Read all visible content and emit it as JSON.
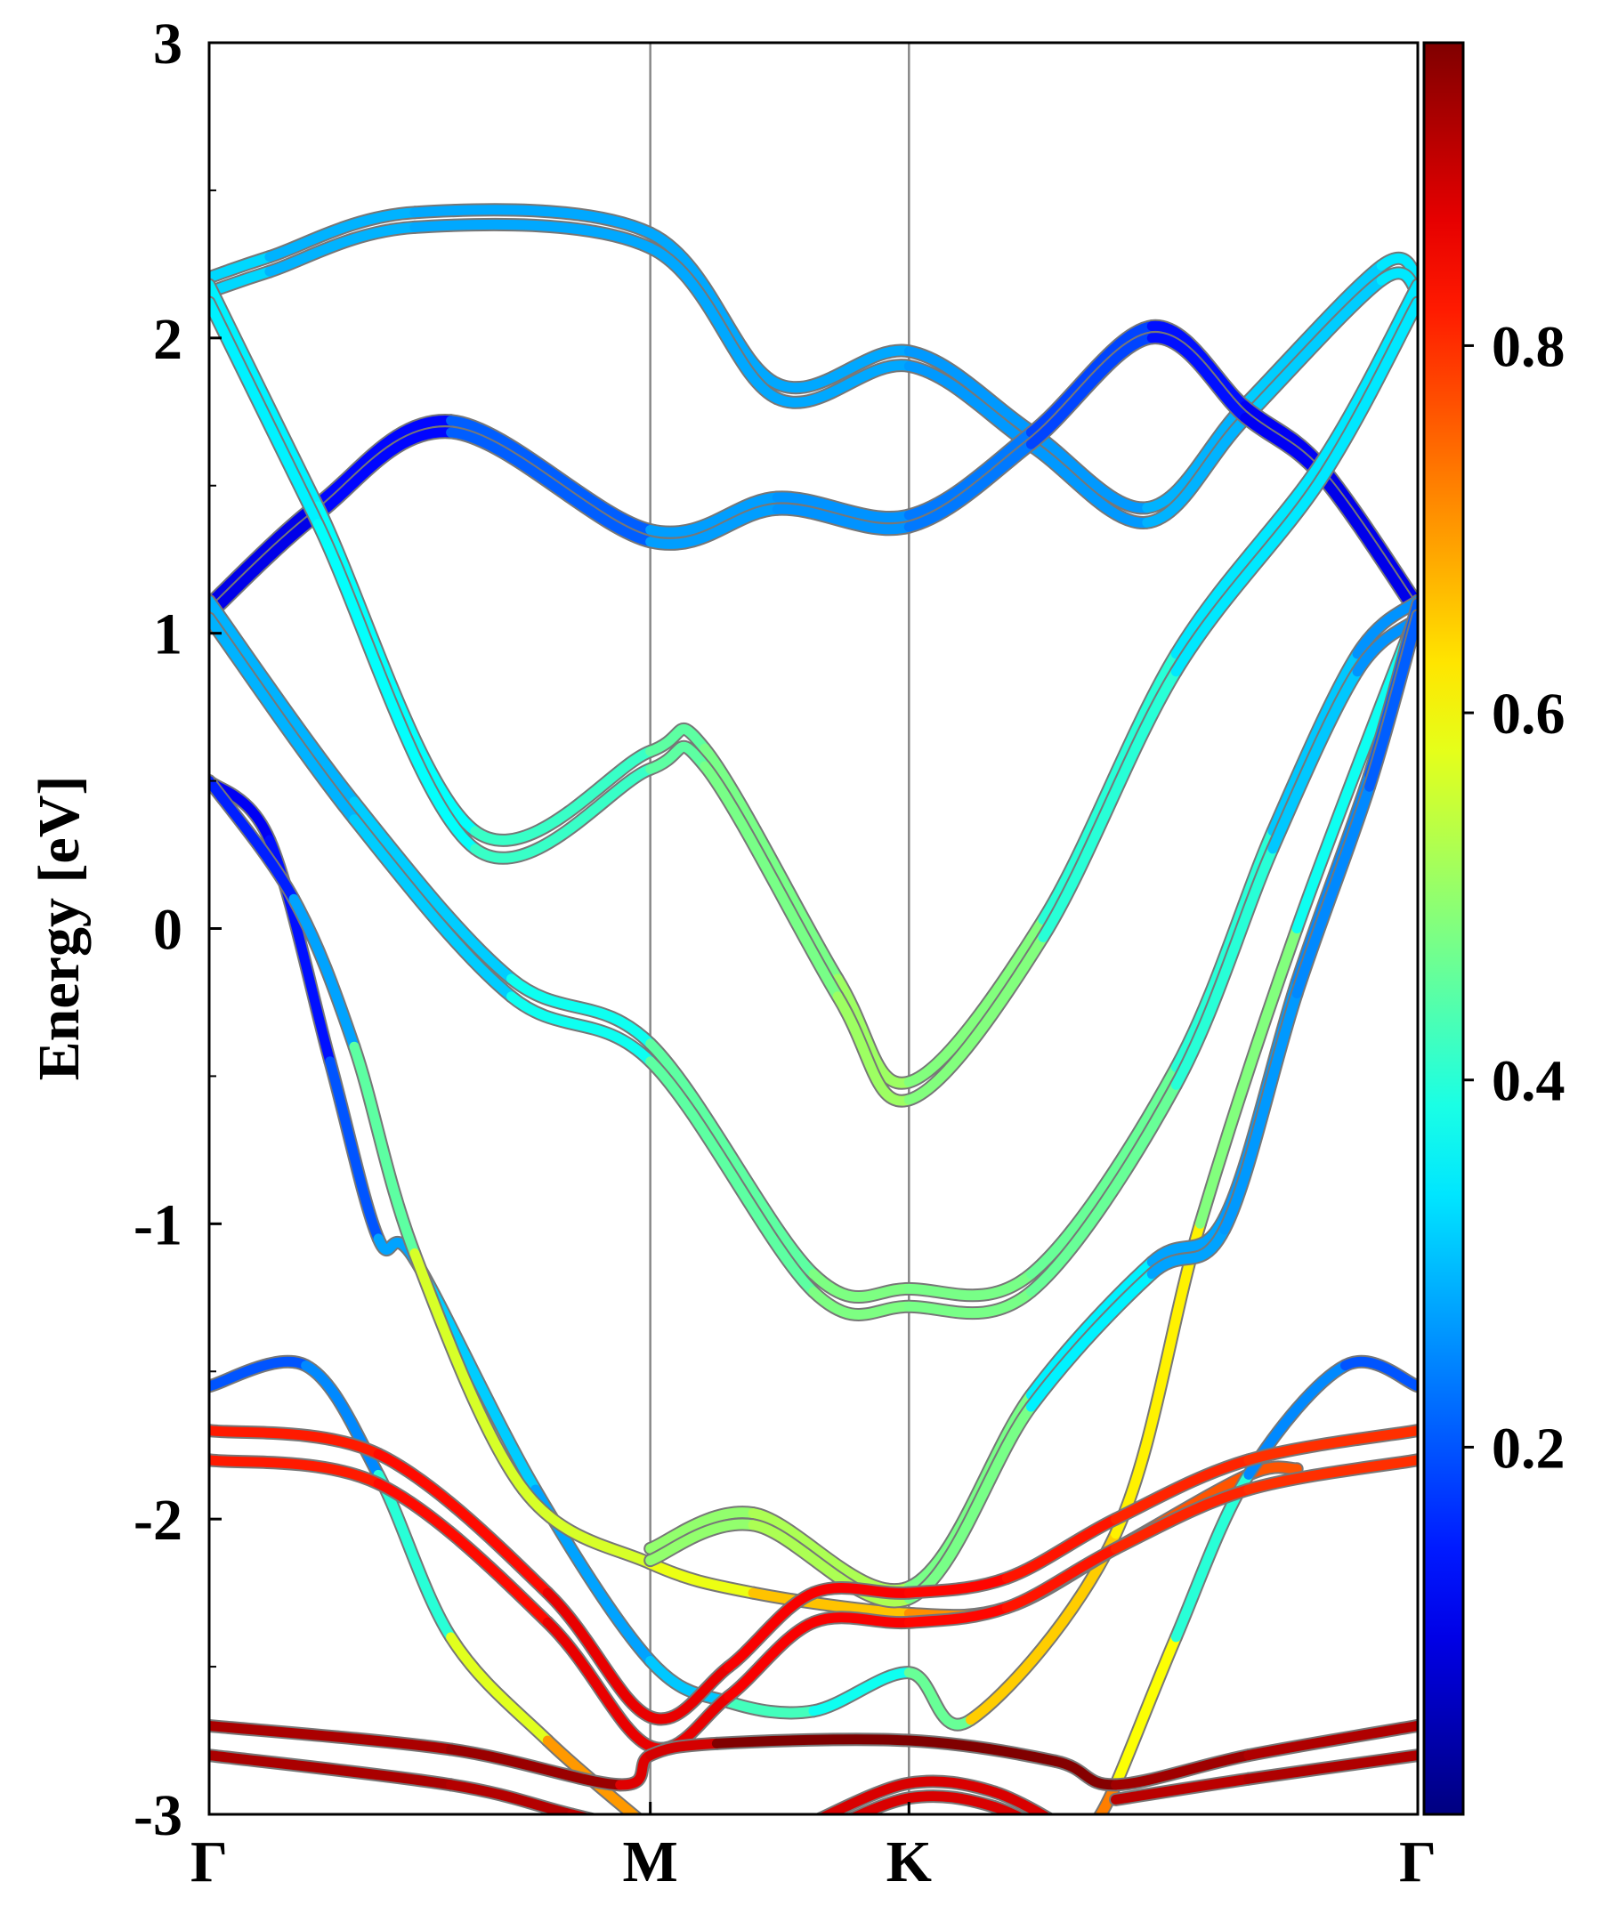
{
  "chart_data": {
    "type": "line",
    "title": "",
    "xlabel": "",
    "ylabel": "Energy [eV]",
    "ylim": [
      -3,
      3
    ],
    "xlim": [
      0,
      1
    ],
    "yticks": [
      "-3",
      "-2",
      "-1",
      "0",
      "1",
      "2",
      "3"
    ],
    "yticks_values": [
      -3,
      -2,
      -1,
      0,
      1,
      2,
      3
    ],
    "xticks": [
      {
        "label": "Γ",
        "x": 0
      },
      {
        "label": "M",
        "x": 0.365
      },
      {
        "label": "K",
        "x": 0.579
      },
      {
        "label": "Γ",
        "x": 1
      }
    ],
    "colorbar": {
      "colormap": "jet",
      "range": [
        0,
        0.965
      ],
      "ticks": [
        "0.2",
        "0.4",
        "0.6",
        "0.8"
      ],
      "tick_values": [
        0.2,
        0.4,
        0.6,
        0.8
      ]
    },
    "band_point_format": "[k-path position, energy eV, projected weight]",
    "bands": [
      {
        "name": "band-1",
        "split": 0.05,
        "points": [
          [
            0,
            2.18,
            0.35
          ],
          [
            0.05,
            2.25,
            0.3
          ],
          [
            0.17,
            2.4,
            0.28
          ],
          [
            0.365,
            2.33,
            0.28
          ],
          [
            0.47,
            1.82,
            0.28
          ],
          [
            0.579,
            1.93,
            0.28
          ],
          [
            0.68,
            1.66,
            0.25
          ],
          [
            0.776,
            1.4,
            0.28
          ],
          [
            0.857,
            1.75,
            0.3
          ],
          [
            0.97,
            2.22,
            0.33
          ],
          [
            1,
            2.18,
            0.35
          ]
        ]
      },
      {
        "name": "band-2",
        "split": 0.04,
        "points": [
          [
            0,
            1.08,
            0.1
          ],
          [
            0.09,
            1.42,
            0.1
          ],
          [
            0.2,
            1.7,
            0.15
          ],
          [
            0.365,
            1.33,
            0.27
          ],
          [
            0.47,
            1.44,
            0.27
          ],
          [
            0.579,
            1.38,
            0.25
          ],
          [
            0.68,
            1.66,
            0.22
          ],
          [
            0.78,
            2.02,
            0.15
          ],
          [
            0.857,
            1.75,
            0.12
          ],
          [
            0.92,
            1.55,
            0.1
          ],
          [
            1,
            1.08,
            0.1
          ]
        ]
      },
      {
        "name": "band-3",
        "split": 0.06,
        "points": [
          [
            0,
            2.15,
            0.35
          ],
          [
            0.09,
            1.4,
            0.35
          ],
          [
            0.22,
            0.3,
            0.38
          ],
          [
            0.365,
            0.57,
            0.45
          ],
          [
            0.41,
            0.58,
            0.45
          ],
          [
            0.52,
            -0.2,
            0.5
          ],
          [
            0.579,
            -0.55,
            0.52
          ],
          [
            0.69,
            0.0,
            0.45
          ],
          [
            0.8,
            0.9,
            0.35
          ],
          [
            0.92,
            1.55,
            0.33
          ],
          [
            1,
            2.15,
            0.35
          ]
        ]
      },
      {
        "name": "band-4",
        "split": 0.06,
        "points": [
          [
            0,
            1.08,
            0.28
          ],
          [
            0.12,
            0.4,
            0.3
          ],
          [
            0.25,
            -0.2,
            0.33
          ],
          [
            0.365,
            -0.42,
            0.42
          ],
          [
            0.5,
            -1.2,
            0.48
          ],
          [
            0.579,
            -1.25,
            0.48
          ],
          [
            0.68,
            -1.2,
            0.47
          ],
          [
            0.8,
            -0.5,
            0.45
          ],
          [
            0.88,
            0.3,
            0.35
          ],
          [
            0.95,
            0.9,
            0.27
          ],
          [
            1,
            1.08,
            0.25
          ]
        ]
      },
      {
        "name": "band-5",
        "split": 0,
        "points": [
          [
            0,
            0.5,
            0.1
          ],
          [
            0.05,
            0.3,
            0.12
          ],
          [
            0.1,
            -0.45,
            0.15
          ],
          [
            0.14,
            -1.05,
            0.25
          ],
          [
            0.17,
            -1.12,
            0.3
          ],
          [
            0.27,
            -1.9,
            0.33
          ],
          [
            0.365,
            -2.48,
            0.22
          ],
          [
            0.43,
            -2.62,
            0.4
          ],
          [
            0.5,
            -2.65,
            0.45
          ],
          [
            0.579,
            -2.52,
            0.3
          ],
          [
            0.63,
            -2.68,
            0.62
          ],
          [
            0.75,
            -2.05,
            0.68
          ],
          [
            0.82,
            -1.0,
            0.55
          ],
          [
            0.9,
            0.0,
            0.42
          ],
          [
            1,
            1.08,
            0.33
          ]
        ]
      },
      {
        "name": "band-6",
        "split": 0,
        "points": [
          [
            0,
            0.5,
            0.1
          ],
          [
            0.07,
            0.1,
            0.2
          ],
          [
            0.12,
            -0.4,
            0.35
          ],
          [
            0.17,
            -1.1,
            0.55
          ],
          [
            0.26,
            -1.9,
            0.58
          ],
          [
            0.365,
            -2.15,
            0.55
          ],
          [
            0.45,
            -2.25,
            0.62
          ],
          [
            0.579,
            -2.32,
            0.7
          ],
          [
            0.66,
            -2.3,
            0.72
          ],
          [
            0.75,
            -2.1,
            0.75
          ],
          [
            0.86,
            -1.85,
            0.78
          ],
          [
            0.9,
            -1.83,
            0.75
          ]
        ]
      },
      {
        "name": "band-7",
        "split": 0.04,
        "points": [
          [
            0.365,
            -2.12,
            0.5
          ],
          [
            0.45,
            -2.0,
            0.5
          ],
          [
            0.579,
            -2.25,
            0.55
          ],
          [
            0.68,
            -1.6,
            0.4
          ],
          [
            0.78,
            -1.15,
            0.3
          ],
          [
            0.84,
            -1.0,
            0.25
          ],
          [
            0.9,
            -0.2,
            0.28
          ],
          [
            0.96,
            0.5,
            0.22
          ],
          [
            1,
            1.08,
            0.2
          ]
        ]
      },
      {
        "name": "band-8",
        "split": 0,
        "points": [
          [
            0,
            -1.55,
            0.2
          ],
          [
            0.08,
            -1.48,
            0.2
          ],
          [
            0.14,
            -1.85,
            0.3
          ],
          [
            0.2,
            -2.4,
            0.5
          ],
          [
            0.28,
            -2.75,
            0.65
          ],
          [
            0.365,
            -3.05,
            0.75
          ]
        ]
      },
      {
        "name": "band-9",
        "split": 0,
        "points": [
          [
            0.73,
            -3.05,
            0.75
          ],
          [
            0.75,
            -2.9,
            0.7
          ],
          [
            0.8,
            -2.4,
            0.5
          ],
          [
            0.86,
            -1.85,
            0.3
          ],
          [
            0.94,
            -1.48,
            0.2
          ],
          [
            1,
            -1.55,
            0.2
          ]
        ]
      },
      {
        "name": "band-10",
        "split": 0.1,
        "points": [
          [
            0,
            -1.75,
            0.82
          ],
          [
            0.14,
            -1.83,
            0.82
          ],
          [
            0.28,
            -2.3,
            0.85
          ],
          [
            0.365,
            -2.72,
            0.88
          ],
          [
            0.43,
            -2.55,
            0.85
          ],
          [
            0.5,
            -2.3,
            0.85
          ],
          [
            0.579,
            -2.3,
            0.85
          ],
          [
            0.66,
            -2.25,
            0.83
          ],
          [
            0.75,
            -2.05,
            0.82
          ],
          [
            0.86,
            -1.85,
            0.8
          ],
          [
            1,
            -1.75,
            0.8
          ]
        ]
      },
      {
        "name": "band-11",
        "split": 0,
        "points": [
          [
            0,
            -2.7,
            0.92
          ],
          [
            0.2,
            -2.78,
            0.93
          ],
          [
            0.34,
            -2.9,
            0.95
          ],
          [
            0.365,
            -2.8,
            0.8
          ],
          [
            0.42,
            -2.76,
            0.97
          ],
          [
            0.579,
            -2.75,
            0.97
          ],
          [
            0.7,
            -2.82,
            0.97
          ],
          [
            0.75,
            -2.9,
            0.95
          ],
          [
            0.86,
            -2.8,
            0.92
          ],
          [
            1,
            -2.7,
            0.92
          ]
        ]
      },
      {
        "name": "band-12",
        "split": 0,
        "points": [
          [
            0,
            -2.8,
            0.92
          ],
          [
            0.2,
            -2.9,
            0.93
          ],
          [
            0.3,
            -3.0,
            0.9
          ],
          [
            0.4,
            -3.1,
            0.9
          ]
        ]
      },
      {
        "name": "band-13",
        "split": 0.05,
        "points": [
          [
            0.5,
            -3.05,
            0.88
          ],
          [
            0.579,
            -2.92,
            0.88
          ],
          [
            0.65,
            -2.95,
            0.88
          ],
          [
            0.72,
            -3.1,
            0.88
          ]
        ]
      },
      {
        "name": "band-14",
        "split": 0,
        "points": [
          [
            0.75,
            -2.95,
            0.9
          ],
          [
            0.86,
            -2.88,
            0.92
          ],
          [
            1,
            -2.8,
            0.92
          ]
        ]
      }
    ]
  }
}
